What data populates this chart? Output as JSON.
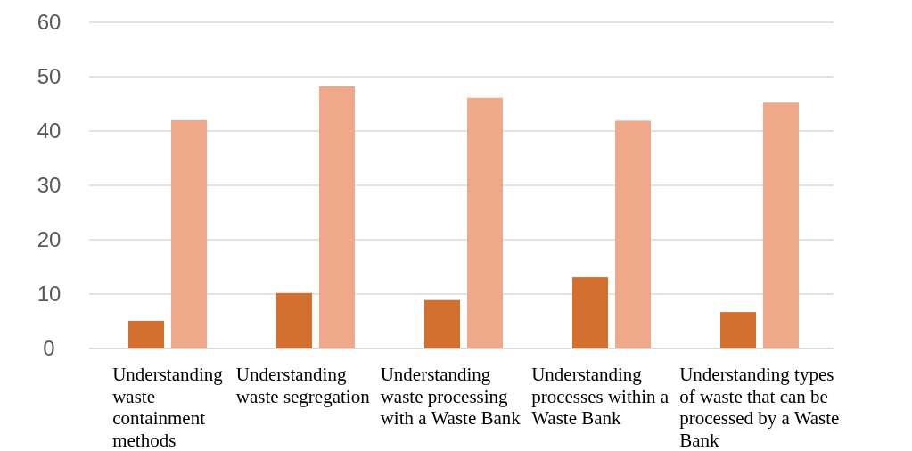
{
  "chart_data": {
    "type": "bar",
    "categories": [
      "Understanding waste containment methods",
      "Understanding waste segregation",
      "Understanding waste processing with a Waste Bank",
      "Understanding processes within a Waste Bank",
      "Understanding types of waste that can be processed by a Waste Bank"
    ],
    "series": [
      {
        "color": "#d4702f",
        "values": [
          5.1,
          10.2,
          8.9,
          13.1,
          6.7
        ]
      },
      {
        "color": "#f0a88a",
        "values": [
          42,
          48.2,
          46.1,
          41.9,
          45.2
        ]
      }
    ],
    "ylim": [
      0,
      60
    ],
    "yticks": [
      0,
      10,
      20,
      30,
      40,
      50,
      60
    ],
    "grid": "y"
  }
}
